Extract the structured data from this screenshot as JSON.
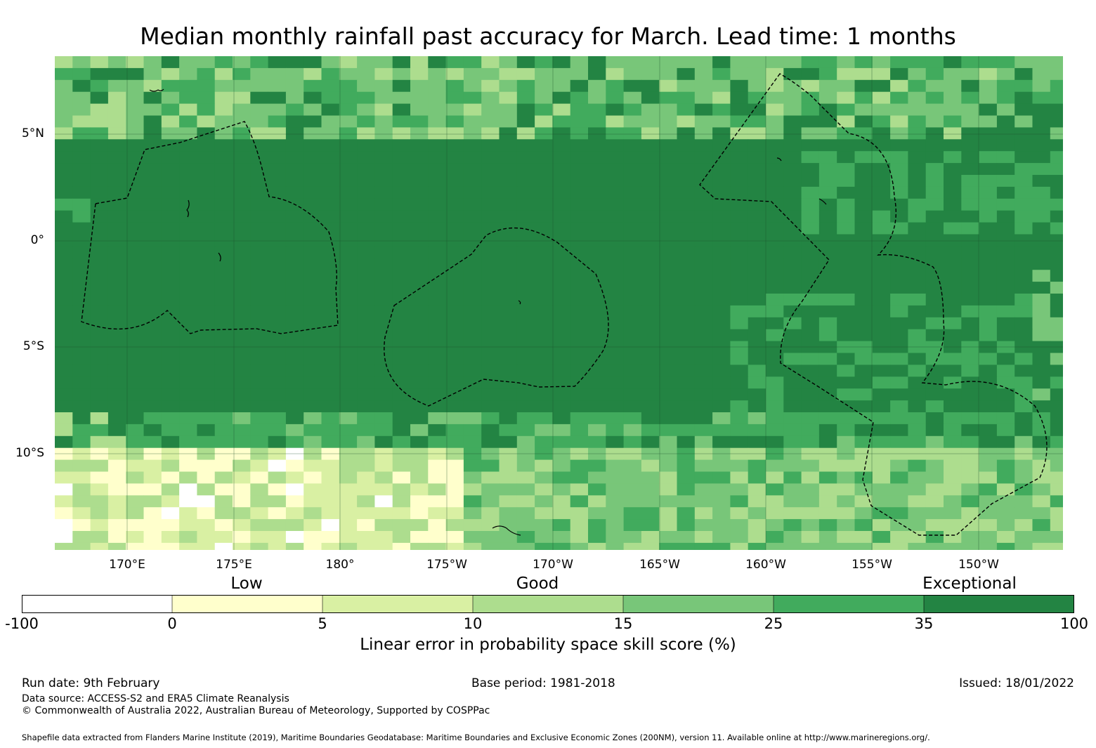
{
  "title": "Median monthly rainfall past accuracy for March. Lead time: 1 months",
  "map": {
    "lat_labels": [
      "5°N",
      "0°",
      "5°S",
      "10°S"
    ],
    "lon_labels": [
      "170°E",
      "175°E",
      "180°",
      "175°W",
      "170°W",
      "165°W",
      "160°W",
      "155°W",
      "150°W"
    ]
  },
  "colorbar": {
    "categories": [
      "Low",
      "Good",
      "Exceptional"
    ],
    "ticks": [
      "-100",
      "0",
      "5",
      "10",
      "15",
      "25",
      "35",
      "100"
    ],
    "colors": [
      "#ffffff",
      "#ffffcc",
      "#d9f0a3",
      "#addd8e",
      "#78c679",
      "#41ab5d",
      "#238443"
    ],
    "label": "Linear error in probability space skill score (%)"
  },
  "footer": {
    "run_date": "Run date: 9th February",
    "base_period": "Base period: 1981-2018",
    "issued": "Issued: 18/01/2022",
    "data_source": "Data source: ACCESS-S2 and ERA5 Climate Reanalysis",
    "copyright": "© Commonwealth of Australia 2022, Australian Bureau of Meteorology, Supported by COSPPac",
    "shapefile": "Shapefile data extracted from Flanders Marine Institute (2019), Maritime Boundaries Geodatabase: Maritime Boundaries and Exclusive Economic Zones (200NM), version 11. Available online at http://www.marineregions.org/."
  }
}
